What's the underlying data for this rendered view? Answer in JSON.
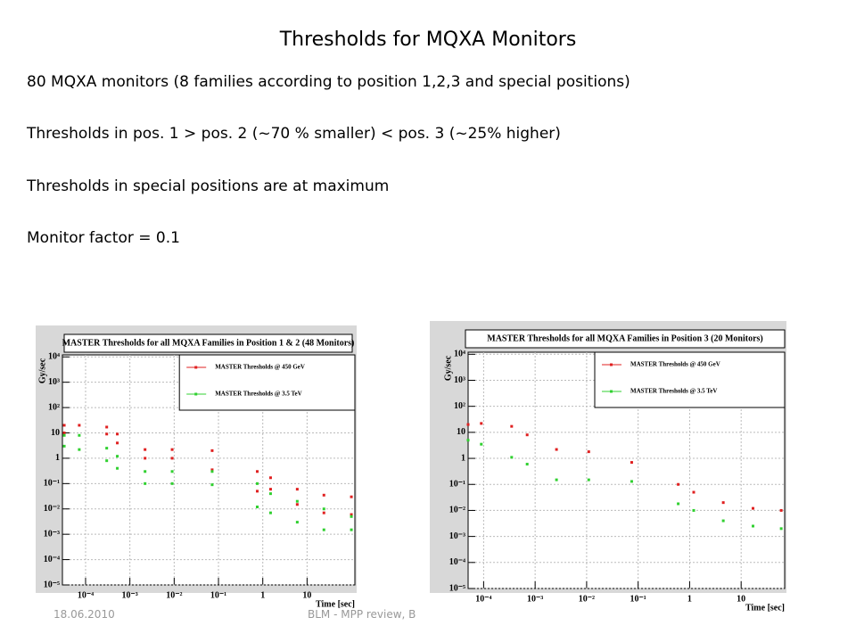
{
  "title": "Thresholds for MQXA Monitors",
  "bullets": [
    "80 MQXA monitors (8 families according to position 1,2,3 and special positions)",
    "Thresholds in pos. 1 > pos. 2 (~70 % smaller) < pos. 3 (~25% higher)",
    "Thresholds in special positions are at maximum",
    "Monitor factor = 0.1"
  ],
  "footer": {
    "date": "18.06.2010",
    "event": "BLM - MPP review, B"
  },
  "chart_data": [
    {
      "type": "scatter",
      "title": "MASTER Thresholds for all MQXA Families in Position 1 & 2 (48 Monitors)",
      "xlabel": "Time [sec]",
      "ylabel": "Gy/sec",
      "log_x": true,
      "log_y": true,
      "grid": true,
      "legend": "top-right",
      "xlim": [
        3e-05,
        120
      ],
      "ylim": [
        1e-05,
        12000
      ],
      "xticks": [
        {
          "value": 0.0001,
          "label": "10⁻⁴"
        },
        {
          "value": 0.001,
          "label": "10⁻³"
        },
        {
          "value": 0.01,
          "label": "10⁻²"
        },
        {
          "value": 0.1,
          "label": "10⁻¹"
        },
        1,
        10
      ],
      "yticks": [
        {
          "value": 1e-05,
          "label": "10⁻⁵"
        },
        {
          "value": 0.0001,
          "label": "10⁻⁴"
        },
        {
          "value": 0.001,
          "label": "10⁻³"
        },
        {
          "value": 0.01,
          "label": "10⁻²"
        },
        {
          "value": 0.1,
          "label": "10⁻¹"
        },
        1,
        10,
        {
          "value": 100,
          "label": "10²"
        },
        {
          "value": 1000,
          "label": "10³"
        },
        {
          "value": 10000,
          "label": "10⁴"
        }
      ],
      "series": [
        {
          "name": "MASTER Thresholds @ 450 GeV",
          "color": "#e02020",
          "x": [
            3.3e-05,
            3.3e-05,
            7.2e-05,
            0.0003,
            0.0003,
            0.00052,
            0.00052,
            0.0022,
            0.0022,
            0.009,
            0.009,
            0.072,
            0.072,
            0.75,
            0.75,
            1.5,
            1.5,
            6,
            6,
            24,
            24,
            100,
            100
          ],
          "values": [
            20,
            10,
            20,
            17,
            9,
            9,
            4,
            2.2,
            1,
            2.2,
            1,
            2,
            0.35,
            0.3,
            0.05,
            0.17,
            0.06,
            0.06,
            0.015,
            0.035,
            0.007,
            0.03,
            0.006
          ]
        },
        {
          "name": "MASTER Thresholds @ 3.5 TeV",
          "color": "#30d030",
          "x": [
            3.3e-05,
            3.3e-05,
            7.2e-05,
            7.2e-05,
            0.0003,
            0.0003,
            0.00052,
            0.00052,
            0.0022,
            0.0022,
            0.009,
            0.009,
            0.072,
            0.072,
            0.75,
            0.75,
            1.5,
            1.5,
            6,
            6,
            24,
            24,
            100,
            100
          ],
          "values": [
            3,
            8,
            2.2,
            8,
            0.8,
            2.5,
            0.4,
            1.2,
            0.1,
            0.3,
            0.1,
            0.3,
            0.09,
            0.3,
            0.012,
            0.1,
            0.007,
            0.04,
            0.003,
            0.02,
            0.0015,
            0.01,
            0.0015,
            0.005
          ]
        }
      ]
    },
    {
      "type": "scatter",
      "title": "MASTER Thresholds for all MQXA Families in Position 3 (20 Monitors)",
      "xlabel": "Time [sec]",
      "ylabel": "Gy/sec",
      "log_x": true,
      "log_y": true,
      "grid": true,
      "legend": "top-right",
      "xlim": [
        5e-05,
        70
      ],
      "ylim": [
        1e-05,
        12000
      ],
      "xticks": [
        {
          "value": 0.0001,
          "label": "10⁻⁴"
        },
        {
          "value": 0.001,
          "label": "10⁻³"
        },
        {
          "value": 0.01,
          "label": "10⁻²"
        },
        {
          "value": 0.1,
          "label": "10⁻¹"
        },
        1,
        10
      ],
      "yticks": [
        {
          "value": 1e-05,
          "label": "10⁻⁵"
        },
        {
          "value": 0.0001,
          "label": "10⁻⁴"
        },
        {
          "value": 0.001,
          "label": "10⁻³"
        },
        {
          "value": 0.01,
          "label": "10⁻²"
        },
        {
          "value": 0.1,
          "label": "10⁻¹"
        },
        1,
        10,
        {
          "value": 100,
          "label": "10²"
        },
        {
          "value": 1000,
          "label": "10³"
        },
        {
          "value": 10000,
          "label": "10⁴"
        }
      ],
      "series": [
        {
          "name": "MASTER Thresholds @ 450 GeV",
          "color": "#e02020",
          "x": [
            5e-05,
            9e-05,
            0.00035,
            0.0007,
            0.0026,
            0.011,
            0.075,
            0.6,
            1.2,
            4.5,
            17,
            60
          ],
          "values": [
            20,
            22,
            17,
            8,
            2.2,
            1.8,
            0.7,
            0.1,
            0.05,
            0.02,
            0.012,
            0.01
          ]
        },
        {
          "name": "MASTER Thresholds @ 3.5 TeV",
          "color": "#30d030",
          "x": [
            5e-05,
            9e-05,
            0.00035,
            0.0007,
            0.0026,
            0.011,
            0.075,
            0.6,
            1.2,
            4.5,
            17,
            60
          ],
          "values": [
            5,
            3.5,
            1.1,
            0.6,
            0.15,
            0.15,
            0.13,
            0.018,
            0.01,
            0.004,
            0.0025,
            0.002
          ]
        }
      ]
    }
  ]
}
